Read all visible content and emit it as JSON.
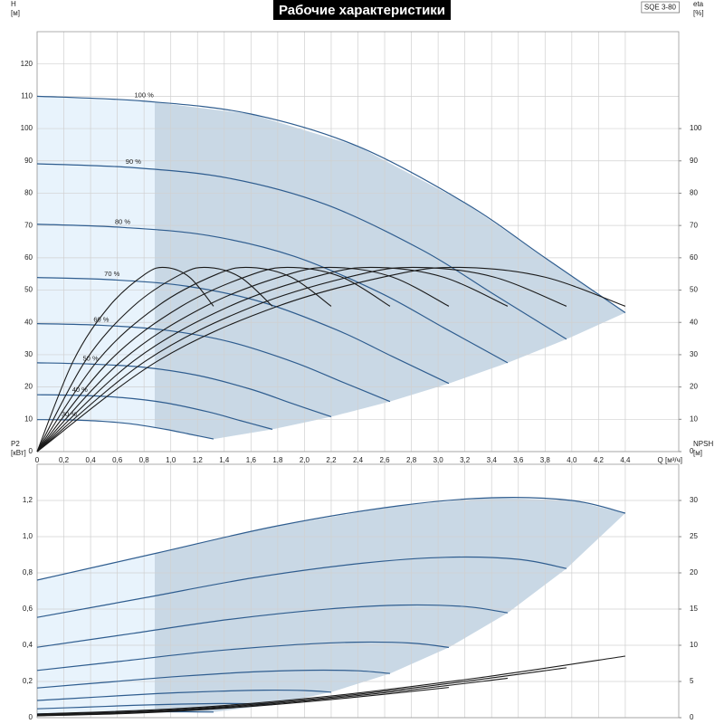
{
  "chart_data": [
    {
      "type": "line",
      "title": "Рабочие характеристики",
      "model": "SQE 3-80",
      "y_label": "H",
      "y_unit": "[м]",
      "y2_label": "eta",
      "y2_unit": "[%]",
      "x_label": "Q [м³/ч]",
      "xlim": [
        0,
        4.8
      ],
      "ylim": [
        0,
        130
      ],
      "y2lim": [
        0,
        130
      ],
      "grid": true,
      "min_flow_x": 0.88,
      "xticks": [
        0,
        {
          "value": 0.2,
          "label": "0,2"
        },
        {
          "value": 0.4,
          "label": "0,4"
        },
        {
          "value": 0.6,
          "label": "0,6"
        },
        {
          "value": 0.8,
          "label": "0,8"
        },
        {
          "value": 1.0,
          "label": "1,0"
        },
        {
          "value": 1.2,
          "label": "1,2"
        },
        {
          "value": 1.4,
          "label": "1,4"
        },
        {
          "value": 1.6,
          "label": "1,6"
        },
        {
          "value": 1.8,
          "label": "1,8"
        },
        {
          "value": 2.0,
          "label": "2,0"
        },
        {
          "value": 2.2,
          "label": "2,2"
        },
        {
          "value": 2.4,
          "label": "2,4"
        },
        {
          "value": 2.6,
          "label": "2,6"
        },
        {
          "value": 2.8,
          "label": "2,8"
        },
        {
          "value": 3.0,
          "label": "3,0"
        },
        {
          "value": 3.2,
          "label": "3,2"
        },
        {
          "value": 3.4,
          "label": "3,4"
        },
        {
          "value": 3.6,
          "label": "3,6"
        },
        {
          "value": 3.8,
          "label": "3,8"
        },
        {
          "value": 4.0,
          "label": "4,0"
        },
        {
          "value": 4.2,
          "label": "4,2"
        },
        {
          "value": 4.4,
          "label": "4,4"
        }
      ],
      "yticks": [
        0,
        10,
        20,
        30,
        40,
        50,
        60,
        70,
        80,
        90,
        100,
        110,
        120
      ],
      "y2ticks": [
        0,
        10,
        20,
        30,
        40,
        50,
        60,
        70,
        80,
        90,
        100
      ],
      "series": [
        {
          "name": "100 %",
          "color": "#2f5d8f",
          "x": [
            0,
            0.8,
            1.6,
            2.4,
            3.2,
            3.8,
            4.4
          ],
          "values": [
            110,
            108.5,
            104.5,
            94.5,
            77,
            60,
            43
          ]
        },
        {
          "name": "90 %",
          "color": "#2f5d8f",
          "x": [
            0,
            0.72,
            1.44,
            2.16,
            2.88,
            3.42,
            3.96
          ],
          "values": [
            89.1,
            87.9,
            84.6,
            76.5,
            62.4,
            48.6,
            34.8
          ]
        },
        {
          "name": "80 %",
          "color": "#2f5d8f",
          "x": [
            0,
            0.64,
            1.28,
            1.92,
            2.56,
            3.04,
            3.52
          ],
          "values": [
            70.4,
            69.4,
            66.9,
            60.5,
            49.3,
            38.4,
            27.5
          ]
        },
        {
          "name": "70 %",
          "color": "#2f5d8f",
          "x": [
            0,
            0.56,
            1.12,
            1.68,
            2.24,
            2.66,
            3.08
          ],
          "values": [
            53.9,
            53.2,
            51.2,
            46.3,
            37.7,
            29.4,
            21.1
          ]
        },
        {
          "name": "60 %",
          "color": "#2f5d8f",
          "x": [
            0,
            0.48,
            0.96,
            1.44,
            1.92,
            2.28,
            2.64
          ],
          "values": [
            39.6,
            39.1,
            37.6,
            34.0,
            27.7,
            21.6,
            15.5
          ]
        },
        {
          "name": "50 %",
          "color": "#2f5d8f",
          "x": [
            0,
            0.4,
            0.8,
            1.2,
            1.6,
            1.9,
            2.2
          ],
          "values": [
            27.5,
            27.1,
            26.1,
            23.6,
            19.3,
            15,
            10.8
          ]
        },
        {
          "name": "40 %",
          "color": "#2f5d8f",
          "x": [
            0,
            0.32,
            0.64,
            0.96,
            1.28,
            1.52,
            1.76
          ],
          "values": [
            17.6,
            17.4,
            16.7,
            15.1,
            12.3,
            9.6,
            6.9
          ]
        },
        {
          "name": "30 %",
          "color": "#2f5d8f",
          "x": [
            0,
            0.24,
            0.48,
            0.72,
            0.96,
            1.14,
            1.32
          ],
          "values": [
            9.9,
            9.8,
            9.4,
            8.5,
            6.9,
            5.4,
            3.9
          ]
        },
        {
          "axis": "y2",
          "color": "#1a1a1a",
          "x": [
            0,
            0.9,
            1.8,
            2.7,
            3.2,
            3.8,
            4.4
          ],
          "values": [
            0,
            28,
            45,
            55,
            57,
            54,
            45
          ]
        },
        {
          "axis": "y2",
          "color": "#1a1a1a",
          "x": [
            0,
            0.81,
            1.62,
            2.43,
            2.88,
            3.42,
            3.96
          ],
          "values": [
            0,
            28,
            45,
            55,
            57,
            54,
            45
          ]
        },
        {
          "axis": "y2",
          "color": "#1a1a1a",
          "x": [
            0,
            0.72,
            1.44,
            2.16,
            2.56,
            3.04,
            3.52
          ],
          "values": [
            0,
            28,
            45,
            55,
            57,
            54,
            45
          ]
        },
        {
          "axis": "y2",
          "color": "#1a1a1a",
          "x": [
            0,
            0.63,
            1.26,
            1.89,
            2.24,
            2.66,
            3.08
          ],
          "values": [
            0,
            28,
            45,
            55,
            57,
            54,
            45
          ]
        },
        {
          "axis": "y2",
          "color": "#1a1a1a",
          "x": [
            0,
            0.54,
            1.08,
            1.62,
            1.92,
            2.28,
            2.64
          ],
          "values": [
            0,
            28,
            45,
            55,
            57,
            54,
            45
          ]
        },
        {
          "axis": "y2",
          "color": "#1a1a1a",
          "x": [
            0,
            0.45,
            0.9,
            1.35,
            1.6,
            1.9,
            2.2
          ],
          "values": [
            0,
            28,
            45,
            55,
            57,
            54,
            45
          ]
        },
        {
          "axis": "y2",
          "color": "#1a1a1a",
          "x": [
            0,
            0.36,
            0.72,
            1.08,
            1.28,
            1.52,
            1.76
          ],
          "values": [
            0,
            28,
            45,
            55,
            57,
            54,
            45
          ]
        },
        {
          "axis": "y2",
          "color": "#1a1a1a",
          "x": [
            0,
            0.27,
            0.54,
            0.81,
            0.96,
            1.14,
            1.32
          ],
          "values": [
            0,
            28,
            45,
            55,
            57,
            54,
            45
          ]
        }
      ]
    },
    {
      "type": "line",
      "y_label": "P2",
      "y_unit": "[кВт]",
      "y2_label": "NPSH",
      "y2_unit": "[м]",
      "xlim": [
        0,
        4.8
      ],
      "ylim": [
        0,
        1.4
      ],
      "y2lim": [
        0,
        35
      ],
      "grid": true,
      "min_flow_x": 0.88,
      "yticks": [
        0,
        {
          "value": 0.2,
          "label": "0,2"
        },
        {
          "value": 0.4,
          "label": "0,4"
        },
        {
          "value": 0.6,
          "label": "0,6"
        },
        {
          "value": 0.8,
          "label": "0,8"
        },
        {
          "value": 1.0,
          "label": "1,0"
        },
        {
          "value": 1.2,
          "label": "1,2"
        }
      ],
      "y2ticks": [
        0,
        5,
        10,
        15,
        20,
        25,
        30
      ],
      "series": [
        {
          "color": "#2f5d8f",
          "x": [
            0,
            0.9,
            1.8,
            2.7,
            3.4,
            4.0,
            4.4
          ],
          "values": [
            0.76,
            0.91,
            1.06,
            1.17,
            1.215,
            1.2,
            1.13
          ]
        },
        {
          "color": "#2f5d8f",
          "x": [
            0,
            0.81,
            1.62,
            2.43,
            3.06,
            3.6,
            3.96
          ],
          "values": [
            0.554,
            0.663,
            0.773,
            0.853,
            0.886,
            0.875,
            0.824
          ]
        },
        {
          "color": "#2f5d8f",
          "x": [
            0,
            0.72,
            1.44,
            2.16,
            2.72,
            3.2,
            3.52
          ],
          "values": [
            0.389,
            0.466,
            0.543,
            0.599,
            0.622,
            0.614,
            0.579
          ]
        },
        {
          "color": "#2f5d8f",
          "x": [
            0,
            0.63,
            1.26,
            1.89,
            2.38,
            2.8,
            3.08
          ],
          "values": [
            0.261,
            0.312,
            0.364,
            0.401,
            0.417,
            0.412,
            0.388
          ]
        },
        {
          "color": "#2f5d8f",
          "x": [
            0,
            0.54,
            1.08,
            1.62,
            2.04,
            2.4,
            2.64
          ],
          "values": [
            0.164,
            0.197,
            0.229,
            0.253,
            0.262,
            0.259,
            0.244
          ]
        },
        {
          "color": "#2f5d8f",
          "x": [
            0,
            0.45,
            0.9,
            1.35,
            1.7,
            2.0,
            2.2
          ],
          "values": [
            0.095,
            0.114,
            0.133,
            0.146,
            0.152,
            0.15,
            0.141
          ]
        },
        {
          "color": "#2f5d8f",
          "x": [
            0,
            0.36,
            0.72,
            1.08,
            1.36,
            1.6,
            1.76
          ],
          "values": [
            0.049,
            0.058,
            0.068,
            0.075,
            0.078,
            0.077,
            0.072
          ]
        },
        {
          "color": "#2f5d8f",
          "x": [
            0,
            0.27,
            0.54,
            0.81,
            1.02,
            1.2,
            1.32
          ],
          "values": [
            0.021,
            0.025,
            0.029,
            0.032,
            0.033,
            0.032,
            0.031
          ]
        },
        {
          "axis": "y2",
          "color": "#1a1a1a",
          "x": [
            0,
            1.1,
            2.2,
            3.3,
            4.4
          ],
          "values": [
            0.5,
            1.3,
            3.0,
            5.5,
            8.5
          ]
        },
        {
          "axis": "y2",
          "color": "#1a1a1a",
          "x": [
            0,
            0.99,
            1.98,
            2.97,
            3.96
          ],
          "values": [
            0.4,
            1.05,
            2.43,
            4.46,
            6.89
          ]
        },
        {
          "axis": "y2",
          "color": "#1a1a1a",
          "x": [
            0,
            0.88,
            1.76,
            2.64,
            3.52
          ],
          "values": [
            0.32,
            0.83,
            1.92,
            3.52,
            5.44
          ]
        },
        {
          "axis": "y2",
          "color": "#1a1a1a",
          "x": [
            0,
            0.77,
            1.54,
            2.31,
            3.08
          ],
          "values": [
            0.25,
            0.64,
            1.47,
            2.7,
            4.17
          ]
        }
      ]
    }
  ]
}
